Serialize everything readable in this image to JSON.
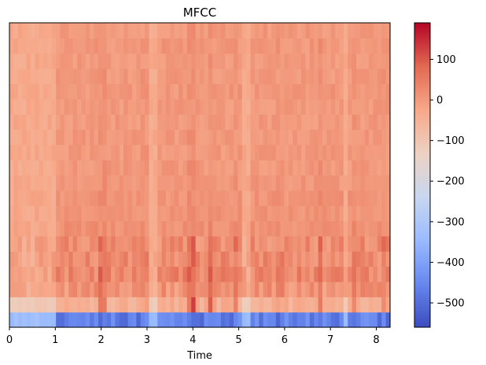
{
  "chart_data": {
    "type": "heatmap",
    "title": "MFCC",
    "xlabel": "Time",
    "ylabel": "",
    "x_range": [
      0,
      8.3
    ],
    "x_ticks": [
      0,
      1,
      2,
      3,
      4,
      5,
      6,
      7,
      8
    ],
    "x_tick_labels": [
      "0",
      "1",
      "2",
      "3",
      "4",
      "5",
      "6",
      "7",
      "8"
    ],
    "n_coefficients": 20,
    "n_frames": 90,
    "colormap": "coolwarm",
    "colorbar": {
      "min": -560,
      "max": 190,
      "ticks": [
        100,
        0,
        -100,
        -200,
        -300,
        -400,
        -500
      ],
      "tick_labels": [
        "100",
        "0",
        "−100",
        "−200",
        "−300",
        "−400",
        "−500"
      ]
    },
    "coefficient_baseline": [
      -470,
      -40,
      10,
      30,
      25,
      20,
      15,
      10,
      8,
      5,
      3,
      2,
      1,
      0,
      0,
      5,
      2,
      0,
      5,
      0
    ],
    "silence_segments": [
      [
        0,
        1.0
      ],
      [
        3.05,
        3.2
      ],
      [
        5.1,
        5.25
      ],
      [
        7.25,
        7.35
      ]
    ],
    "onsets": [
      1.95,
      2.05,
      2.95,
      3.9,
      4.0,
      4.4,
      4.9,
      5.9,
      6.75,
      7.55,
      8.2
    ]
  },
  "colors": {
    "cmap_stops": [
      "#3b4cc0",
      "#6788ee",
      "#9abbff",
      "#c9d7f0",
      "#edd1c2",
      "#f7a889",
      "#e26952",
      "#b40426"
    ]
  }
}
